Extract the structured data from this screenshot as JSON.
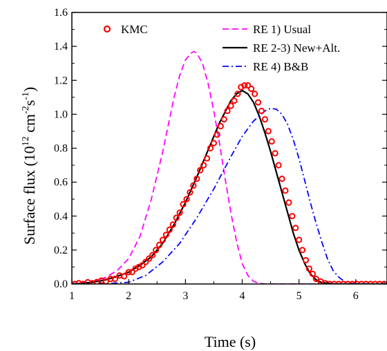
{
  "chart_data": {
    "type": "line",
    "title": "",
    "xlabel": "Time (s)",
    "ylabel": {
      "prefix": "Surface flux (10",
      "exp1": "12",
      "mid1": " cm",
      "exp2": "-2",
      "mid2": "s",
      "exp3": "-1",
      "suffix": ")"
    },
    "xlim": [
      1,
      6.55
    ],
    "ylim": [
      0,
      1.6
    ],
    "xticks": [
      1,
      2,
      3,
      4,
      5,
      6
    ],
    "xtick_labels": [
      "1",
      "2",
      "3",
      "4",
      "5",
      "6"
    ],
    "yticks": [
      0,
      0.2,
      0.4,
      0.6,
      0.8,
      1.0,
      1.2,
      1.4,
      1.6
    ],
    "ytick_labels": [
      "0.0",
      "0.2",
      "0.4",
      "0.6",
      "0.8",
      "1.0",
      "1.2",
      "1.4",
      "1.6"
    ],
    "grid": false,
    "legend_position": "top",
    "colors": {
      "kmc": "#ff0000",
      "re1": "#ff00ff",
      "re23": "#000000",
      "re4": "#0000ff"
    },
    "series": [
      {
        "name": "KMC",
        "style": "markers",
        "x": [
          1.05,
          1.12,
          1.2,
          1.28,
          1.36,
          1.44,
          1.52,
          1.6,
          1.68,
          1.76,
          1.84,
          1.92,
          2.0,
          2.06,
          2.12,
          2.18,
          2.24,
          2.3,
          2.36,
          2.42,
          2.48,
          2.54,
          2.6,
          2.66,
          2.72,
          2.78,
          2.84,
          2.9,
          2.96,
          3.02,
          3.08,
          3.14,
          3.2,
          3.26,
          3.32,
          3.38,
          3.44,
          3.5,
          3.56,
          3.62,
          3.68,
          3.74,
          3.8,
          3.86,
          3.92,
          3.98,
          4.04,
          4.1,
          4.16,
          4.22,
          4.28,
          4.34,
          4.4,
          4.46,
          4.52,
          4.58,
          4.64,
          4.7,
          4.76,
          4.82,
          4.88,
          4.94,
          5.0,
          5.06,
          5.12,
          5.18,
          5.24,
          5.3,
          5.38,
          5.46,
          5.54,
          5.62,
          5.7,
          5.78,
          5.86,
          5.94,
          6.02,
          6.1,
          6.18,
          6.26,
          6.34,
          6.42,
          6.5
        ],
        "y": [
          0.0,
          0.005,
          0.0,
          0.01,
          0.005,
          0.012,
          0.02,
          0.015,
          0.03,
          0.03,
          0.05,
          0.045,
          0.07,
          0.07,
          0.09,
          0.1,
          0.11,
          0.13,
          0.15,
          0.17,
          0.2,
          0.23,
          0.26,
          0.29,
          0.32,
          0.35,
          0.39,
          0.42,
          0.47,
          0.5,
          0.54,
          0.58,
          0.62,
          0.67,
          0.7,
          0.74,
          0.8,
          0.83,
          0.88,
          0.93,
          0.97,
          1.02,
          1.05,
          1.08,
          1.12,
          1.16,
          1.17,
          1.17,
          1.15,
          1.12,
          1.07,
          1.02,
          0.97,
          0.9,
          0.84,
          0.77,
          0.7,
          0.62,
          0.55,
          0.48,
          0.4,
          0.33,
          0.26,
          0.2,
          0.14,
          0.09,
          0.06,
          0.03,
          0.015,
          0.005,
          0.0,
          0.0,
          0.0,
          0.0,
          0.0,
          0.0,
          0.0,
          0.0,
          0.0,
          0.0,
          0.0,
          0.0,
          0.0
        ]
      },
      {
        "name": "RE 1) Usual",
        "style": "dashed",
        "x": [
          1.0,
          1.2,
          1.4,
          1.6,
          1.8,
          2.0,
          2.2,
          2.4,
          2.6,
          2.8,
          2.9,
          3.0,
          3.1,
          3.15,
          3.2,
          3.3,
          3.4,
          3.5,
          3.6,
          3.7,
          3.8,
          3.9,
          4.0,
          4.1,
          4.2,
          4.3,
          4.4,
          4.6,
          5.0,
          6.55
        ],
        "y": [
          0.0,
          0.005,
          0.015,
          0.04,
          0.08,
          0.15,
          0.28,
          0.5,
          0.78,
          1.1,
          1.23,
          1.32,
          1.36,
          1.37,
          1.36,
          1.3,
          1.18,
          1.02,
          0.83,
          0.62,
          0.42,
          0.25,
          0.12,
          0.05,
          0.015,
          0.004,
          0.0,
          0.0,
          0.0,
          0.0
        ]
      },
      {
        "name": "RE 2-3) New+Alt.",
        "style": "solid",
        "x": [
          1.0,
          1.2,
          1.4,
          1.6,
          1.8,
          2.0,
          2.2,
          2.4,
          2.6,
          2.8,
          3.0,
          3.2,
          3.4,
          3.6,
          3.8,
          3.9,
          4.0,
          4.1,
          4.2,
          4.3,
          4.4,
          4.5,
          4.6,
          4.7,
          4.8,
          4.9,
          5.0,
          5.1,
          5.2,
          5.3,
          5.4,
          5.6,
          6.0,
          6.55
        ],
        "y": [
          0.0,
          0.004,
          0.012,
          0.025,
          0.045,
          0.07,
          0.11,
          0.16,
          0.24,
          0.35,
          0.48,
          0.63,
          0.79,
          0.95,
          1.08,
          1.12,
          1.14,
          1.12,
          1.07,
          0.99,
          0.89,
          0.78,
          0.66,
          0.54,
          0.42,
          0.3,
          0.2,
          0.12,
          0.06,
          0.025,
          0.008,
          0.0,
          0.0,
          0.0
        ]
      },
      {
        "name": "RE 4) B&B",
        "style": "dashdot",
        "x": [
          1.0,
          1.5,
          2.0,
          2.3,
          2.6,
          2.9,
          3.2,
          3.5,
          3.8,
          4.0,
          4.2,
          4.4,
          4.5,
          4.6,
          4.7,
          4.8,
          4.9,
          5.0,
          5.1,
          5.2,
          5.3,
          5.4,
          5.5,
          5.6,
          5.7,
          5.8,
          5.9,
          6.1,
          6.55
        ],
        "y": [
          0.0,
          0.0,
          0.01,
          0.05,
          0.13,
          0.24,
          0.39,
          0.56,
          0.75,
          0.87,
          0.96,
          1.02,
          1.035,
          1.03,
          1.0,
          0.94,
          0.85,
          0.74,
          0.61,
          0.48,
          0.36,
          0.25,
          0.15,
          0.08,
          0.04,
          0.015,
          0.004,
          0.0,
          0.0
        ]
      }
    ]
  }
}
